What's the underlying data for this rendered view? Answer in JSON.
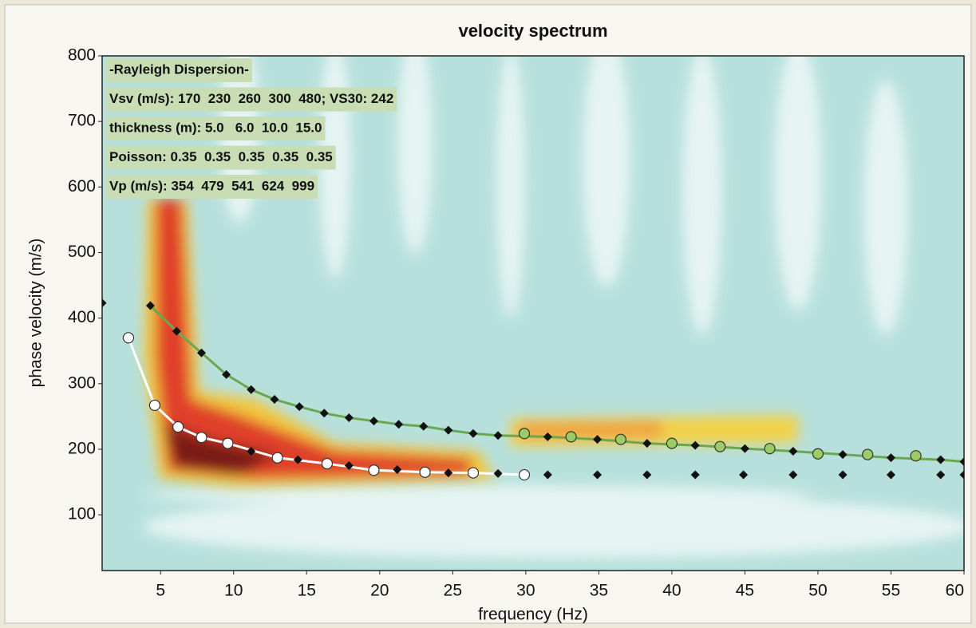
{
  "chart_data": {
    "type": "scatter",
    "title": "velocity spectrum",
    "x_label": "frequency (Hz)",
    "y_label": "phase velocity (m/s)",
    "xlim": [
      1,
      60
    ],
    "ylim": [
      15,
      800
    ],
    "xticks": [
      5,
      10,
      15,
      20,
      25,
      30,
      35,
      40,
      45,
      50,
      55,
      60
    ],
    "yticks": [
      100,
      200,
      300,
      400,
      500,
      600,
      700,
      800
    ],
    "annotations": [
      "-Rayleigh Dispersion-",
      "Vsv (m/s): 170  230  260  300  480; VS30: 242",
      "thickness (m): 5.0   6.0  10.0  15.0",
      "Poisson: 0.35  0.35  0.35  0.35  0.35",
      "Vp (m/s): 354  479  541  624  999"
    ],
    "series": [
      {
        "x": [
          4.3,
          6.1,
          7.8,
          9.5,
          11.2,
          12.8,
          14.5,
          16.2,
          17.9,
          19.6,
          21.3,
          23,
          24.7,
          26.4,
          28.1,
          31.5,
          34.9,
          38.3,
          41.6,
          45,
          48.3,
          51.7,
          55,
          58.4,
          60
        ],
        "values": [
          419,
          380,
          347,
          314,
          291,
          276,
          265,
          255,
          248,
          243,
          238,
          235,
          229,
          224,
          221,
          219,
          215,
          209,
          206,
          201,
          197,
          192,
          187,
          184,
          181
        ],
        "color": "#111111",
        "line_color": "#6aa84f",
        "line": true,
        "marker": "diamond"
      },
      {
        "x": [
          29.9,
          33.1,
          36.5,
          40,
          43.3,
          46.7,
          50,
          53.4,
          56.7
        ],
        "values": [
          224,
          219,
          215,
          209,
          204,
          201,
          193,
          192,
          190
        ],
        "color": "#9ccc65",
        "line": false,
        "marker": "circle"
      },
      {
        "x": [
          2.8,
          4.6,
          6.2,
          7.8,
          9.6,
          13,
          16.4,
          19.6,
          23.1,
          26.4,
          29.9
        ],
        "values": [
          370,
          267,
          234,
          218,
          209,
          187,
          178,
          168,
          165,
          164,
          161
        ],
        "color": "#ffffff",
        "line_color": "#ffffff",
        "line": true,
        "marker": "circle"
      },
      {
        "x": [
          1,
          11.2,
          14.4,
          17.9,
          21.2,
          24.7,
          28.1,
          31.5,
          34.9,
          38.3,
          41.6,
          44.9,
          48.3,
          51.7,
          55,
          58.4,
          60
        ],
        "values": [
          423,
          197,
          184,
          175,
          169,
          164,
          163,
          161,
          161,
          161,
          161,
          161,
          161,
          161,
          161,
          161,
          161
        ],
        "color": "#111111",
        "line": false,
        "marker": "diamond"
      }
    ]
  }
}
